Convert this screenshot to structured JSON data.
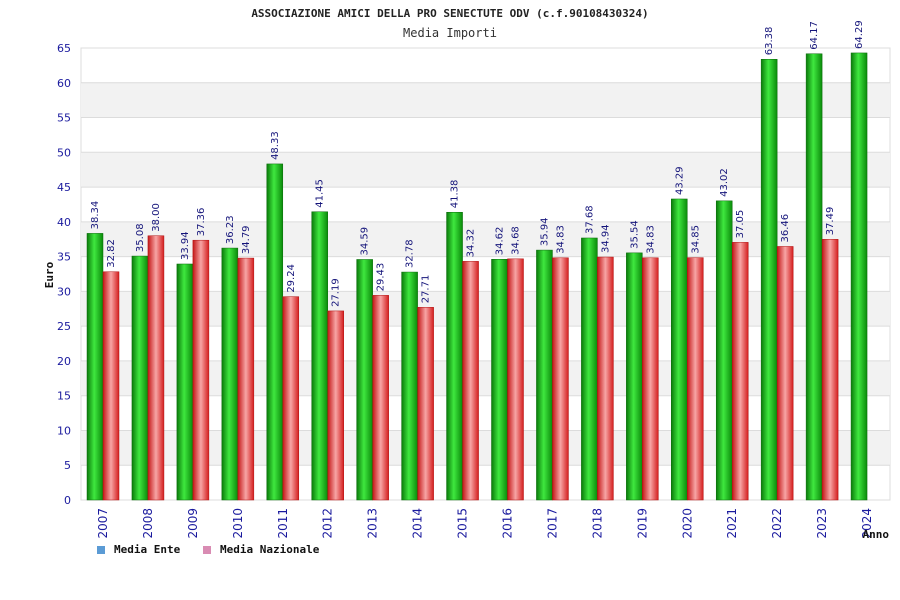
{
  "chart_data": {
    "type": "bar",
    "title": "ASSOCIAZIONE AMICI DELLA PRO SENECTUTE ODV (c.f.90108430324)",
    "subtitle": "Media Importi",
    "xlabel": "Anno",
    "ylabel": "Euro",
    "ylim": [
      0,
      65
    ],
    "ytick_step": 5,
    "grid": true,
    "legend_position": "bottom-left",
    "categories": [
      "2007",
      "2008",
      "2009",
      "2010",
      "2011",
      "2012",
      "2013",
      "2014",
      "2015",
      "2016",
      "2017",
      "2018",
      "2019",
      "2020",
      "2021",
      "2022",
      "2023",
      "2024"
    ],
    "series": [
      {
        "name": "Media Ente",
        "color": "#19c419",
        "legend_color": "#5b9bd5",
        "values": [
          38.34,
          35.08,
          33.94,
          36.23,
          48.33,
          41.45,
          34.59,
          32.78,
          41.38,
          34.62,
          35.94,
          37.68,
          35.54,
          43.29,
          43.02,
          63.38,
          64.17,
          64.29
        ]
      },
      {
        "name": "Media Nazionale",
        "color": "#e23a3a",
        "legend_color": "#d98cb3",
        "values": [
          32.82,
          38.0,
          37.36,
          34.79,
          29.24,
          27.19,
          29.43,
          27.71,
          34.32,
          34.68,
          34.83,
          34.94,
          34.83,
          34.85,
          37.05,
          36.46,
          37.49,
          null
        ]
      }
    ]
  }
}
